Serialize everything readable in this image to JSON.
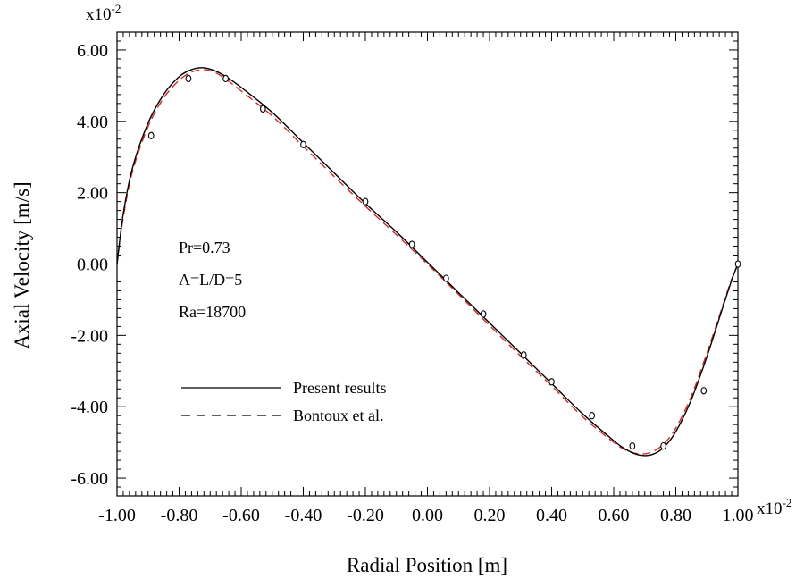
{
  "chart_data": {
    "type": "line",
    "xlabel": "Radial Position [m]",
    "ylabel": "Axial Velocity [m/s]",
    "x_multiplier": {
      "base": "x10",
      "exponent": "-2"
    },
    "y_multiplier": {
      "base": "x10",
      "exponent": "-2"
    },
    "xlim": [
      -1.0,
      1.0
    ],
    "ylim": [
      -6.5,
      6.5
    ],
    "x_ticks": [
      -1.0,
      -0.8,
      -0.6,
      -0.4,
      -0.2,
      0.0,
      0.2,
      0.4,
      0.6,
      0.8,
      1.0
    ],
    "x_tick_labels": [
      "-1.00",
      "-0.80",
      "-0.60",
      "-0.40",
      "-0.20",
      "0.00",
      "0.20",
      "0.40",
      "0.60",
      "0.80",
      "1.00"
    ],
    "y_ticks": [
      -6.0,
      -4.0,
      -2.0,
      0.0,
      2.0,
      4.0,
      6.0
    ],
    "y_tick_labels": [
      "-6.00",
      "-4.00",
      "-2.00",
      "0.00",
      "2.00",
      "4.00",
      "6.00"
    ],
    "grid": false,
    "legend_position": "lower-left",
    "annotations": [
      "Pr=0.73",
      "A=L/D=5",
      "Ra=18700"
    ],
    "series": [
      {
        "name": "Present results",
        "style": "solid",
        "color": "#000000",
        "x": [
          -1.0,
          -0.98,
          -0.95,
          -0.9,
          -0.85,
          -0.8,
          -0.76,
          -0.72,
          -0.68,
          -0.64,
          -0.6,
          -0.5,
          -0.4,
          -0.3,
          -0.2,
          -0.1,
          0.0,
          0.1,
          0.2,
          0.3,
          0.4,
          0.5,
          0.6,
          0.64,
          0.68,
          0.72,
          0.76,
          0.8,
          0.85,
          0.9,
          0.95,
          0.98,
          1.0
        ],
        "y": [
          0.0,
          1.4,
          2.7,
          3.95,
          4.75,
          5.25,
          5.45,
          5.5,
          5.4,
          5.2,
          4.95,
          4.25,
          3.4,
          2.55,
          1.7,
          0.9,
          0.05,
          -0.8,
          -1.65,
          -2.5,
          -3.35,
          -4.2,
          -4.95,
          -5.2,
          -5.35,
          -5.35,
          -5.15,
          -4.7,
          -3.8,
          -2.6,
          -1.25,
          -0.45,
          0.0
        ]
      },
      {
        "name": "Bontoux et al.",
        "style": "dashed",
        "color": "#d22a2a",
        "x": [
          -1.0,
          -0.98,
          -0.95,
          -0.9,
          -0.85,
          -0.8,
          -0.76,
          -0.72,
          -0.68,
          -0.64,
          -0.6,
          -0.5,
          -0.4,
          -0.3,
          -0.2,
          -0.1,
          0.0,
          0.1,
          0.2,
          0.3,
          0.4,
          0.5,
          0.6,
          0.64,
          0.68,
          0.72,
          0.76,
          0.8,
          0.85,
          0.9,
          0.95,
          0.98,
          1.0
        ],
        "y": [
          0.0,
          1.3,
          2.6,
          3.85,
          4.65,
          5.15,
          5.38,
          5.45,
          5.35,
          5.12,
          4.85,
          4.15,
          3.3,
          2.45,
          1.62,
          0.82,
          0.0,
          -0.85,
          -1.72,
          -2.58,
          -3.42,
          -4.28,
          -5.0,
          -5.22,
          -5.32,
          -5.28,
          -5.05,
          -4.6,
          -3.7,
          -2.5,
          -1.2,
          -0.42,
          0.0
        ]
      },
      {
        "name": "",
        "style": "markers",
        "color": "#000000",
        "x": [
          -0.89,
          -0.77,
          -0.65,
          -0.53,
          -0.4,
          -0.2,
          -0.05,
          0.06,
          0.18,
          0.31,
          0.4,
          0.53,
          0.66,
          0.76,
          0.89,
          1.0
        ],
        "y": [
          3.6,
          5.2,
          5.2,
          4.35,
          3.35,
          1.75,
          0.55,
          -0.4,
          -1.4,
          -2.55,
          -3.3,
          -4.25,
          -5.1,
          -5.1,
          -3.55,
          0.0
        ]
      }
    ]
  }
}
